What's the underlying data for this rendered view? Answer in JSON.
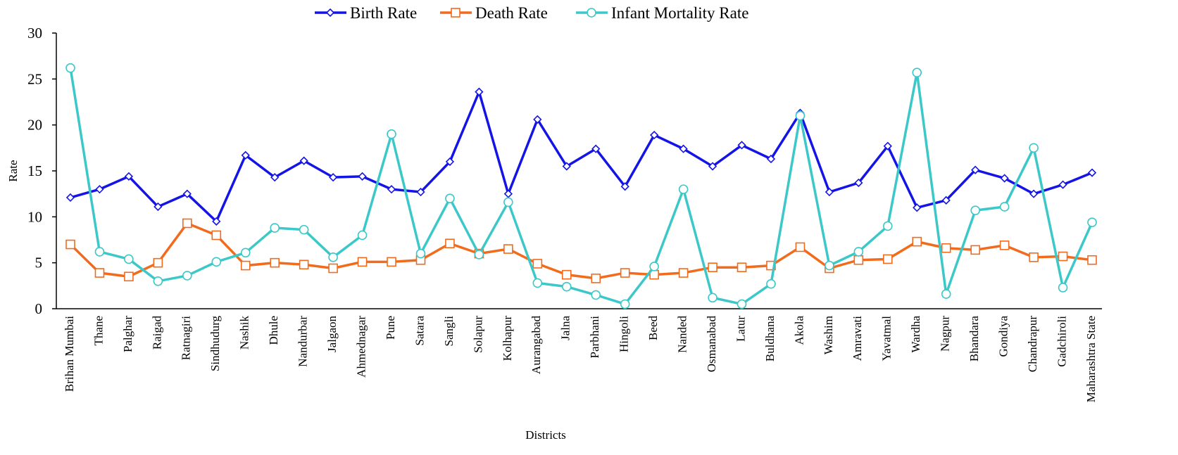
{
  "chart_data": {
    "type": "line",
    "x_label": "Districts",
    "y_label": "Rate",
    "categories": [
      "Brihan Mumbai",
      "Thane",
      "Palghar",
      "Raigad",
      "Ratnagiri",
      "Sindhudurg",
      "Nashik",
      "Dhule",
      "Nandurbar",
      "Jalgaon",
      "Ahmednagar",
      "Pune",
      "Satara",
      "Sangli",
      "Solapur",
      "Kolhapur",
      "Aurangabad",
      "Jalna",
      "Parbhani",
      "Hingoli",
      "Beed",
      "Nanded",
      "Osmanabad",
      "Latur",
      "Buldhana",
      "Akola",
      "Washim",
      "Amravati",
      "Yavatmal",
      "Wardha",
      "Nagpur",
      "Bhandara",
      "Gondiya",
      "Chandrapur",
      "Gadchiroli",
      "Maharashtra State"
    ],
    "series": [
      {
        "name": "Birth Rate",
        "color": "#1414e6",
        "marker": "diamond",
        "values": [
          12.1,
          13.0,
          14.4,
          11.1,
          12.5,
          9.5,
          16.7,
          14.3,
          16.1,
          14.3,
          14.4,
          13.0,
          12.7,
          16.0,
          23.6,
          12.5,
          20.6,
          15.5,
          17.4,
          13.3,
          18.9,
          17.4,
          15.5,
          17.8,
          16.3,
          21.3,
          12.7,
          13.7,
          17.7,
          11.0,
          11.8,
          15.1,
          14.2,
          12.5,
          13.5,
          14.8
        ]
      },
      {
        "name": "Death Rate",
        "color": "#f26b1d",
        "marker": "square",
        "values": [
          7.0,
          3.9,
          3.5,
          5.0,
          9.3,
          8.0,
          4.7,
          5.0,
          4.8,
          4.4,
          5.1,
          5.1,
          5.3,
          7.1,
          6.0,
          6.5,
          4.9,
          3.7,
          3.3,
          3.9,
          3.7,
          3.9,
          4.5,
          4.5,
          4.7,
          6.7,
          4.4,
          5.3,
          5.4,
          7.3,
          6.6,
          6.4,
          6.9,
          5.6,
          5.7,
          5.3
        ]
      },
      {
        "name": "Infant Mortality Rate",
        "color": "#3cc8c8",
        "marker": "circle",
        "values": [
          26.2,
          6.2,
          5.4,
          3.0,
          3.6,
          5.1,
          6.1,
          8.8,
          8.6,
          5.6,
          8.0,
          19.0,
          6.0,
          12.0,
          5.9,
          11.6,
          2.8,
          2.4,
          1.5,
          0.5,
          4.6,
          13.0,
          1.2,
          0.5,
          2.7,
          21.0,
          4.7,
          6.2,
          9.0,
          25.7,
          1.6,
          10.7,
          11.1,
          17.5,
          2.3,
          9.4
        ]
      }
    ],
    "ylim": [
      0,
      30
    ],
    "yticks": [
      0,
      5,
      10,
      15,
      20,
      25,
      30
    ],
    "legend": "top",
    "grid": false
  }
}
